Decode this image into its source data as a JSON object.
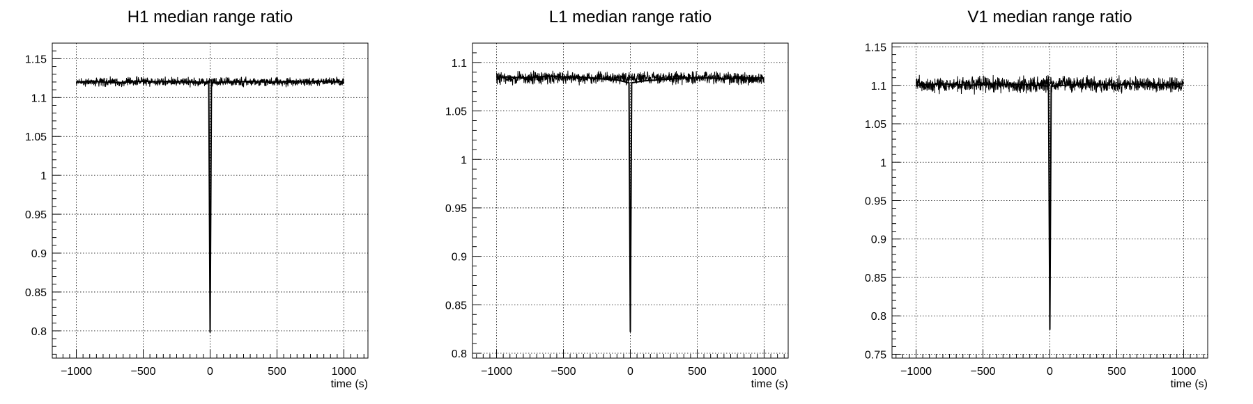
{
  "chart_data": [
    {
      "type": "line",
      "title": "H1 median range ratio",
      "xlabel": "time (s)",
      "ylabel": "",
      "xlim": [
        -1180,
        1180
      ],
      "ylim": [
        0.765,
        1.17
      ],
      "xticks": [
        -1000,
        -500,
        0,
        500,
        1000
      ],
      "yticks": [
        0.8,
        0.85,
        0.9,
        0.95,
        1,
        1.05,
        1.1,
        1.15
      ],
      "ytick_labels": [
        "0.8",
        "0.85",
        "0.9",
        "0.95",
        "1",
        "1.05",
        "1.1",
        "1.15"
      ],
      "xtick_labels": [
        "−1000",
        "−500",
        "0",
        "500",
        "1000"
      ],
      "grid": true,
      "series": [
        {
          "color": "#000000",
          "baseline": 1.12,
          "band_halfwidth": 0.008,
          "band_range": [
            -1000,
            1000
          ],
          "x": [
            -1000,
            -900,
            -800,
            -700,
            -600,
            -500,
            -400,
            -300,
            -200,
            -100,
            -10,
            0,
            10,
            100,
            200,
            300,
            400,
            500,
            600,
            700,
            800,
            900,
            1000
          ],
          "y": [
            1.12,
            1.121,
            1.12,
            1.119,
            1.12,
            1.121,
            1.12,
            1.121,
            1.12,
            1.12,
            1.119,
            0.798,
            1.119,
            1.12,
            1.12,
            1.121,
            1.12,
            1.12,
            1.121,
            1.12,
            1.121,
            1.12,
            1.121
          ]
        }
      ]
    },
    {
      "type": "line",
      "title": "L1 median range ratio",
      "xlabel": "time (s)",
      "ylabel": "",
      "xlim": [
        -1180,
        1180
      ],
      "ylim": [
        0.795,
        1.12
      ],
      "xticks": [
        -1000,
        -500,
        0,
        500,
        1000
      ],
      "yticks": [
        0.8,
        0.85,
        0.9,
        0.95,
        1,
        1.05,
        1.1
      ],
      "ytick_labels": [
        "0.8",
        "0.85",
        "0.9",
        "0.95",
        "1",
        "1.05",
        "1.1"
      ],
      "xtick_labels": [
        "−1000",
        "−500",
        "0",
        "500",
        "1000"
      ],
      "grid": true,
      "series": [
        {
          "color": "#000000",
          "baseline": 1.084,
          "band_halfwidth": 0.009,
          "band_range": [
            -1000,
            1000
          ],
          "x": [
            -1000,
            -900,
            -800,
            -700,
            -600,
            -500,
            -400,
            -300,
            -200,
            -100,
            -10,
            0,
            10,
            100,
            200,
            300,
            400,
            500,
            600,
            700,
            800,
            900,
            1000
          ],
          "y": [
            1.085,
            1.085,
            1.084,
            1.085,
            1.086,
            1.085,
            1.085,
            1.084,
            1.083,
            1.082,
            1.079,
            0.822,
            1.079,
            1.081,
            1.082,
            1.083,
            1.084,
            1.084,
            1.084,
            1.083,
            1.084,
            1.084,
            1.084
          ]
        }
      ]
    },
    {
      "type": "line",
      "title": "V1 median range ratio",
      "xlabel": "time (s)",
      "ylabel": "",
      "xlim": [
        -1180,
        1180
      ],
      "ylim": [
        0.745,
        1.155
      ],
      "xticks": [
        -1000,
        -500,
        0,
        500,
        1000
      ],
      "yticks": [
        0.75,
        0.8,
        0.85,
        0.9,
        0.95,
        1,
        1.05,
        1.1,
        1.15
      ],
      "ytick_labels": [
        "0.75",
        "0.8",
        "0.85",
        "0.9",
        "0.95",
        "1",
        "1.05",
        "1.1",
        "1.15"
      ],
      "xtick_labels": [
        "−1000",
        "−500",
        "0",
        "500",
        "1000"
      ],
      "grid": true,
      "series": [
        {
          "color": "#000000",
          "baseline": 1.101,
          "band_halfwidth": 0.015,
          "band_range": [
            -1000,
            1000
          ],
          "x": [
            -1000,
            -900,
            -800,
            -700,
            -600,
            -500,
            -400,
            -300,
            -200,
            -100,
            -10,
            0,
            10,
            100,
            200,
            300,
            400,
            500,
            600,
            700,
            800,
            900,
            1000
          ],
          "y": [
            1.1,
            1.101,
            1.102,
            1.101,
            1.1,
            1.101,
            1.102,
            1.101,
            1.101,
            1.1,
            1.099,
            0.782,
            1.099,
            1.1,
            1.101,
            1.102,
            1.101,
            1.1,
            1.102,
            1.101,
            1.101,
            1.101,
            1.102
          ]
        }
      ]
    }
  ]
}
